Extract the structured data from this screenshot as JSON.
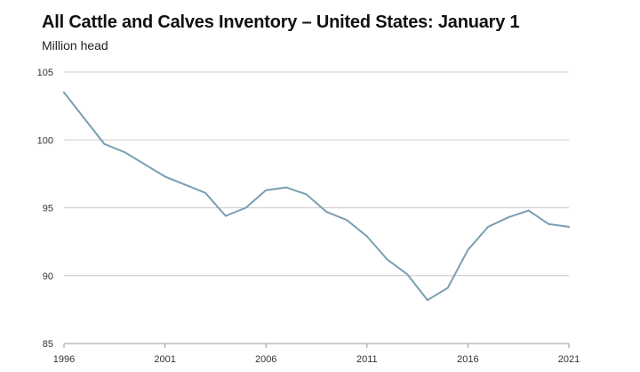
{
  "chart_data": {
    "type": "line",
    "title": "All Cattle and Calves Inventory – United States: January 1",
    "subtitle": "Million head",
    "xlabel": "",
    "ylabel": "Million head",
    "xlim": [
      1996,
      2021
    ],
    "ylim": [
      85,
      105
    ],
    "x_ticks": [
      1996,
      2001,
      2006,
      2011,
      2016,
      2021
    ],
    "y_ticks": [
      85,
      90,
      95,
      100,
      105
    ],
    "grid": true,
    "line_color": "#7a9eb1",
    "grid_color": "#cccccc",
    "series": [
      {
        "name": "All cattle and calves",
        "x": [
          1996,
          1997,
          1998,
          1999,
          2000,
          2001,
          2002,
          2003,
          2004,
          2005,
          2006,
          2007,
          2008,
          2009,
          2010,
          2011,
          2012,
          2013,
          2014,
          2015,
          2016,
          2017,
          2018,
          2019,
          2020,
          2021
        ],
        "values": [
          103.5,
          101.6,
          99.7,
          99.1,
          98.2,
          97.3,
          96.7,
          96.1,
          94.4,
          95.0,
          96.3,
          96.5,
          96.0,
          94.7,
          94.1,
          92.9,
          91.2,
          90.1,
          88.2,
          89.1,
          91.9,
          93.6,
          94.3,
          94.8,
          93.8,
          93.6
        ]
      }
    ]
  }
}
